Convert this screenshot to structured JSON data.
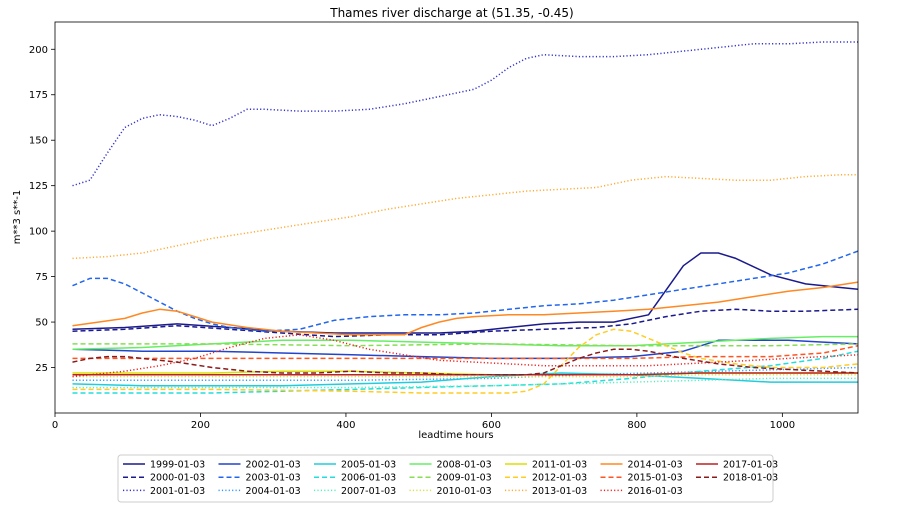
{
  "chart_data": {
    "type": "line",
    "title": "Thames river discharge at (51.35, -0.45)",
    "xlabel": "leadtime hours",
    "ylabel": "m**3 s**-1",
    "xlim": [
      0,
      1104
    ],
    "ylim": [
      0,
      215
    ],
    "xticks": [
      0,
      200,
      400,
      600,
      800,
      1000
    ],
    "yticks": [
      25,
      50,
      75,
      100,
      125,
      150,
      175,
      200
    ],
    "grid": false,
    "legend_position": "bottom-center",
    "series": [
      {
        "name": "1999-01-03",
        "color": "#1a1a8c",
        "dash": "solid",
        "x": [
          24,
          96,
          168,
          240,
          312,
          384,
          456,
          528,
          576,
          624,
          672,
          720,
          768,
          816,
          864,
          888,
          912,
          936,
          984,
          1032,
          1080,
          1104
        ],
        "y": [
          46,
          47,
          49,
          47,
          45,
          44,
          44,
          44,
          45,
          47,
          49,
          50,
          50,
          54,
          81,
          88,
          88,
          85,
          76,
          71,
          69,
          68
        ]
      },
      {
        "name": "2000-01-03",
        "color": "#1a1a8c",
        "dash": "dashed",
        "x": [
          24,
          96,
          168,
          240,
          312,
          384,
          456,
          528,
          600,
          672,
          744,
          792,
          840,
          888,
          936,
          984,
          1032,
          1104
        ],
        "y": [
          45,
          46,
          48,
          46,
          44,
          42,
          43,
          43,
          45,
          46,
          47,
          49,
          53,
          56,
          57,
          56,
          56,
          57
        ]
      },
      {
        "name": "2001-01-03",
        "color": "#3333cc",
        "dash": "dotted",
        "x": [
          24,
          48,
          72,
          96,
          120,
          144,
          168,
          192,
          216,
          240,
          264,
          288,
          336,
          384,
          432,
          480,
          528,
          576,
          600,
          624,
          648,
          672,
          720,
          768,
          816,
          864,
          912,
          960,
          1008,
          1056,
          1104
        ],
        "y": [
          125,
          128,
          143,
          157,
          162,
          164,
          163,
          161,
          158,
          162,
          167,
          167,
          166,
          166,
          167,
          170,
          174,
          178,
          183,
          190,
          195,
          197,
          196,
          196,
          197,
          199,
          201,
          203,
          203,
          204,
          204
        ]
      },
      {
        "name": "2002-01-03",
        "color": "#2244cc",
        "dash": "solid",
        "x": [
          24,
          120,
          216,
          312,
          408,
          504,
          600,
          696,
          792,
          864,
          912,
          960,
          1008,
          1056,
          1104
        ],
        "y": [
          35,
          34,
          34,
          33,
          32,
          31,
          30,
          30,
          31,
          34,
          40,
          40,
          40,
          39,
          38
        ]
      },
      {
        "name": "2003-01-03",
        "color": "#2266ee",
        "dash": "dashed",
        "x": [
          24,
          48,
          72,
          96,
          120,
          144,
          168,
          192,
          216,
          240,
          288,
          336,
          384,
          432,
          480,
          528,
          576,
          624,
          672,
          720,
          768,
          816,
          864,
          912,
          960,
          1008,
          1056,
          1104
        ],
        "y": [
          70,
          74,
          74,
          71,
          66,
          61,
          56,
          52,
          49,
          47,
          45,
          46,
          51,
          53,
          54,
          54,
          55,
          57,
          59,
          60,
          62,
          65,
          68,
          71,
          74,
          77,
          82,
          89
        ]
      },
      {
        "name": "2004-01-03",
        "color": "#3399ff",
        "dash": "dotted",
        "x": [
          24,
          216,
          408,
          600,
          720,
          816,
          912,
          1008,
          1104
        ],
        "y": [
          18,
          18,
          18,
          19,
          21,
          22,
          23,
          24,
          25
        ]
      },
      {
        "name": "2005-01-03",
        "color": "#22ccdd",
        "dash": "solid",
        "x": [
          24,
          120,
          216,
          312,
          408,
          504,
          600,
          696,
          792,
          888,
          984,
          1104
        ],
        "y": [
          16,
          15,
          15,
          15,
          16,
          17,
          20,
          22,
          21,
          19,
          17,
          17
        ]
      },
      {
        "name": "2006-01-03",
        "color": "#22dddd",
        "dash": "dashed",
        "x": [
          24,
          120,
          216,
          312,
          408,
          504,
          600,
          696,
          792,
          888,
          984,
          1056,
          1104
        ],
        "y": [
          11,
          11,
          11,
          12,
          13,
          14,
          15,
          16,
          19,
          23,
          26,
          30,
          34
        ]
      },
      {
        "name": "2007-01-03",
        "color": "#55eebb",
        "dash": "dotted",
        "x": [
          24,
          216,
          408,
          600,
          792,
          888,
          984,
          1104
        ],
        "y": [
          14,
          14,
          14,
          15,
          17,
          18,
          19,
          19
        ]
      },
      {
        "name": "2008-01-03",
        "color": "#66ee66",
        "dash": "solid",
        "x": [
          24,
          120,
          216,
          312,
          408,
          504,
          600,
          696,
          792,
          888,
          984,
          1056,
          1104
        ],
        "y": [
          35,
          36,
          38,
          40,
          40,
          39,
          38,
          37,
          37,
          39,
          41,
          42,
          42
        ]
      },
      {
        "name": "2009-01-03",
        "color": "#88dd55",
        "dash": "dashed",
        "x": [
          24,
          216,
          408,
          600,
          792,
          888,
          984,
          1104
        ],
        "y": [
          38,
          38,
          37,
          38,
          37,
          37,
          37,
          38
        ]
      },
      {
        "name": "2010-01-03",
        "color": "#dddd44",
        "dash": "dotted",
        "x": [
          24,
          216,
          408,
          600,
          792,
          888,
          984,
          1104
        ],
        "y": [
          20,
          20,
          20,
          20,
          20,
          21,
          21,
          21
        ]
      },
      {
        "name": "2011-01-03",
        "color": "#dddd00",
        "dash": "solid",
        "x": [
          24,
          120,
          216,
          312,
          408,
          504,
          600,
          696,
          792,
          888,
          984,
          1104
        ],
        "y": [
          22,
          22,
          22,
          23,
          23,
          22,
          21,
          21,
          21,
          22,
          22,
          22
        ]
      },
      {
        "name": "2012-01-03",
        "color": "#ffcc22",
        "dash": "dashed",
        "x": [
          24,
          216,
          408,
          504,
          576,
          624,
          648,
          672,
          696,
          720,
          744,
          768,
          792,
          816,
          840,
          864,
          888,
          936,
          984,
          1056,
          1104
        ],
        "y": [
          13,
          13,
          12,
          11,
          11,
          11,
          12,
          16,
          26,
          36,
          43,
          46,
          45,
          41,
          37,
          33,
          30,
          27,
          25,
          25,
          27
        ]
      },
      {
        "name": "2013-01-03",
        "color": "#ffaa33",
        "dash": "dotted",
        "x": [
          24,
          72,
          120,
          168,
          216,
          264,
          312,
          360,
          408,
          456,
          504,
          552,
          600,
          648,
          696,
          744,
          792,
          840,
          888,
          936,
          984,
          1032,
          1080,
          1104
        ],
        "y": [
          85,
          86,
          88,
          92,
          96,
          99,
          102,
          105,
          108,
          112,
          115,
          118,
          120,
          122,
          123,
          124,
          128,
          130,
          129,
          128,
          128,
          130,
          131,
          131
        ]
      },
      {
        "name": "2014-01-03",
        "color": "#ff8822",
        "dash": "solid",
        "x": [
          24,
          96,
          120,
          144,
          168,
          192,
          216,
          264,
          312,
          360,
          408,
          456,
          480,
          504,
          528,
          552,
          576,
          624,
          672,
          720,
          768,
          816,
          864,
          912,
          960,
          1008,
          1056,
          1104
        ],
        "y": [
          48,
          52,
          55,
          57,
          56,
          53,
          50,
          47,
          45,
          44,
          43,
          43,
          43,
          47,
          50,
          52,
          53,
          54,
          54,
          55,
          56,
          57,
          59,
          61,
          64,
          67,
          69,
          72
        ]
      },
      {
        "name": "2015-01-03",
        "color": "#ff5522",
        "dash": "dashed",
        "x": [
          24,
          72,
          120,
          168,
          216,
          312,
          408,
          504,
          600,
          696,
          792,
          888,
          984,
          1056,
          1104
        ],
        "y": [
          30,
          30,
          30,
          30,
          30,
          30,
          30,
          30,
          30,
          30,
          30,
          31,
          31,
          33,
          37
        ]
      },
      {
        "name": "2016-01-03",
        "color": "#ee2222",
        "dash": "dotted",
        "x": [
          24,
          96,
          144,
          192,
          240,
          288,
          336,
          384,
          432,
          480,
          528,
          576,
          624,
          672,
          720,
          768,
          816,
          864,
          912,
          960,
          1008,
          1056,
          1104
        ],
        "y": [
          20,
          23,
          26,
          30,
          36,
          41,
          43,
          40,
          35,
          32,
          29,
          28,
          27,
          26,
          26,
          26,
          26,
          27,
          28,
          29,
          30,
          31,
          32
        ]
      },
      {
        "name": "2017-01-03",
        "color": "#bb2222",
        "dash": "solid",
        "x": [
          24,
          120,
          216,
          312,
          408,
          504,
          600,
          696,
          792,
          888,
          984,
          1104
        ],
        "y": [
          21,
          21,
          21,
          21,
          21,
          21,
          21,
          21,
          21,
          22,
          22,
          22
        ]
      },
      {
        "name": "2018-01-03",
        "color": "#8b1a1a",
        "dash": "dashed",
        "x": [
          24,
          48,
          72,
          96,
          120,
          144,
          168,
          216,
          264,
          312,
          360,
          408,
          456,
          504,
          552,
          600,
          624,
          648,
          672,
          696,
          720,
          744,
          768,
          792,
          816,
          840,
          864,
          912,
          960,
          1008,
          1056,
          1104
        ],
        "y": [
          28,
          30,
          31,
          31,
          30,
          29,
          28,
          25,
          23,
          22,
          22,
          23,
          22,
          22,
          21,
          21,
          21,
          21,
          22,
          26,
          30,
          33,
          35,
          35,
          34,
          32,
          30,
          27,
          25,
          24,
          23,
          22
        ]
      }
    ]
  }
}
